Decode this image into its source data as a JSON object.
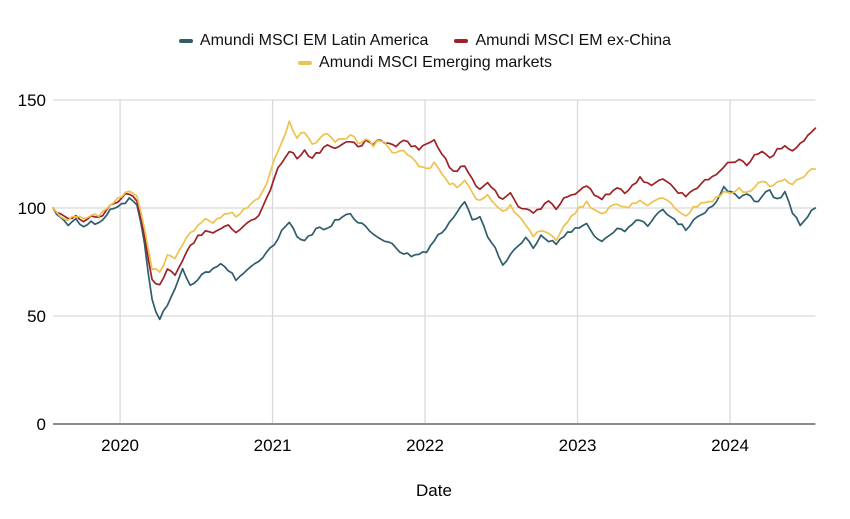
{
  "figure": {
    "background": "#ffffff",
    "text_color": "#111111",
    "grid_color": "#d9d9d9",
    "axis_line_color": "#8a8a8a"
  },
  "legend": {
    "items": [
      {
        "label": "Amundi MSCI EM Latin America",
        "color": "#2e5d6b"
      },
      {
        "label": "Amundi MSCI EM ex-China",
        "color": "#9e2126"
      },
      {
        "label": "Amundi MSCI Emerging markets",
        "color": "#eec24e"
      }
    ]
  },
  "chart_data": {
    "type": "line",
    "title": "",
    "xlabel": "Date",
    "ylabel": "",
    "grid": true,
    "legend_position": "top-center",
    "x_axis": {
      "ticks": [
        2020,
        2021,
        2022,
        2023,
        2024
      ],
      "range": [
        2019.56,
        2024.56
      ]
    },
    "y_axis": {
      "ticks": [
        0,
        50,
        100,
        150
      ],
      "range": [
        0,
        150
      ]
    },
    "x_start": 2019.56,
    "x_step": 0.05,
    "series": [
      {
        "name": "Amundi MSCI EM Latin America",
        "color": "#2e5d6b",
        "values": [
          100,
          95,
          92.5,
          95,
          91.5,
          94,
          93,
          97,
          100,
          102,
          104,
          101,
          84,
          57,
          48,
          55,
          62,
          72,
          64,
          67,
          70,
          72,
          74,
          71,
          67,
          70,
          73,
          76,
          80,
          83,
          89,
          93,
          87,
          85,
          88,
          91,
          90,
          94,
          96,
          97,
          93,
          91,
          88,
          86,
          84,
          81,
          79,
          77.5,
          79,
          80,
          85,
          89,
          93,
          98,
          103,
          94,
          96,
          87,
          82,
          74,
          79,
          83,
          86,
          82,
          88,
          85,
          83,
          87,
          89,
          91,
          93,
          87,
          85,
          88,
          91,
          89,
          93,
          94,
          92,
          97,
          99,
          96,
          93,
          90,
          95,
          97,
          100,
          103,
          110,
          107,
          104,
          107,
          103,
          105,
          108,
          104,
          107,
          98,
          92.5,
          96,
          100
        ]
      },
      {
        "name": "Amundi MSCI EM ex-China",
        "color": "#9e2126",
        "values": [
          100,
          97,
          95,
          96.5,
          94,
          96,
          95.5,
          99,
          102,
          104.5,
          107,
          103,
          87,
          67,
          64,
          72,
          69,
          76,
          82,
          87,
          89,
          88,
          91,
          92,
          88,
          92,
          94,
          97,
          104,
          114,
          121,
          126,
          123,
          127,
          123,
          126,
          129,
          127,
          130,
          131,
          128,
          131,
          129,
          132,
          130,
          128,
          131,
          129,
          127,
          129,
          131,
          125,
          119,
          117,
          120,
          113,
          109,
          112,
          108,
          104,
          107,
          101,
          99,
          97,
          100,
          103,
          100,
          104,
          106,
          108,
          110,
          106,
          104,
          107,
          109,
          107,
          111,
          114,
          111,
          112,
          114,
          111,
          107,
          105,
          108,
          111,
          113,
          116,
          119,
          121,
          123,
          120,
          124,
          126,
          123,
          127,
          129,
          126,
          130,
          134,
          137
        ]
      },
      {
        "name": "Amundi MSCI Emerging markets",
        "color": "#eec24e",
        "values": [
          100,
          96.5,
          94.5,
          96,
          94.5,
          96.5,
          96,
          99.5,
          102.5,
          105,
          108,
          105,
          90,
          72,
          70,
          78,
          76,
          83,
          88,
          92,
          95,
          93,
          96,
          98,
          96,
          99,
          102,
          105,
          111,
          122,
          131,
          140,
          133,
          135,
          130,
          132,
          134,
          130,
          132,
          134,
          130,
          132,
          129,
          131,
          128,
          125,
          127,
          123,
          119,
          118,
          121,
          116,
          111,
          110,
          113,
          107,
          103,
          106,
          102,
          98,
          101,
          96,
          92,
          87,
          89,
          88,
          85,
          92,
          96,
          100,
          103,
          99,
          97,
          100,
          102,
          100,
          102,
          104,
          101,
          103,
          105,
          102,
          99,
          97,
          100,
          102,
          103,
          105,
          107,
          107,
          109,
          107,
          110,
          112,
          110,
          112,
          114,
          111,
          113,
          116,
          118
        ]
      }
    ]
  }
}
